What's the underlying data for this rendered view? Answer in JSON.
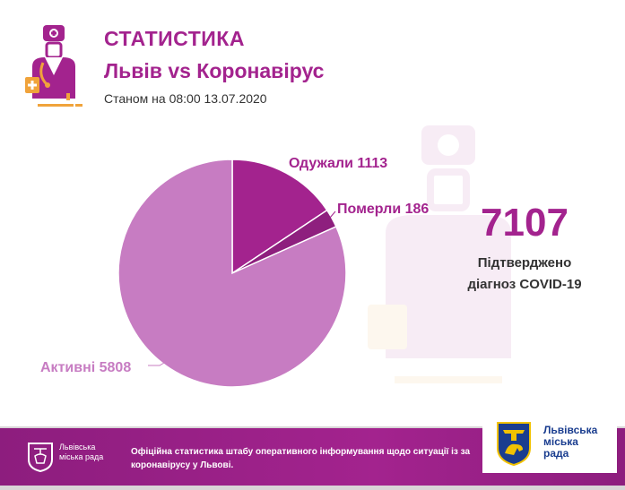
{
  "header": {
    "title": "СТАТИСТИКА",
    "subtitle": "Львів vs Коронавірус",
    "date_line": "Станом на 08:00 13.07.2020"
  },
  "summary": {
    "total": "7107",
    "caption_line1": "Підтверджено",
    "caption_line2": "діагноз COVID-19"
  },
  "chart_data": {
    "type": "pie",
    "slices": [
      {
        "label": "Одужали 1113",
        "name": "Одужали",
        "value": 1113,
        "color": "#a3238e"
      },
      {
        "label": "Померли 186",
        "name": "Померли",
        "value": 186,
        "color": "#8e1f7e"
      },
      {
        "label": "Активні 5808",
        "name": "Активні",
        "value": 5808,
        "color": "#c77cc2"
      }
    ]
  },
  "footer": {
    "org_left": "Львівська міська рада",
    "notice_line1": "Офіційна статистика штабу оперативного інформування щодо ситуації із за",
    "notice_line2": "коронавірусу у Львові.",
    "org_right_line1": "Львівська",
    "org_right_line2": "міська",
    "org_right_line3": "рада"
  },
  "colors": {
    "brand_purple": "#a3238e",
    "pie_light": "#c77cc2",
    "footer_band": "#a3238e",
    "accent_orange": "#f0a33b",
    "city_blue": "#1a3d8f"
  }
}
